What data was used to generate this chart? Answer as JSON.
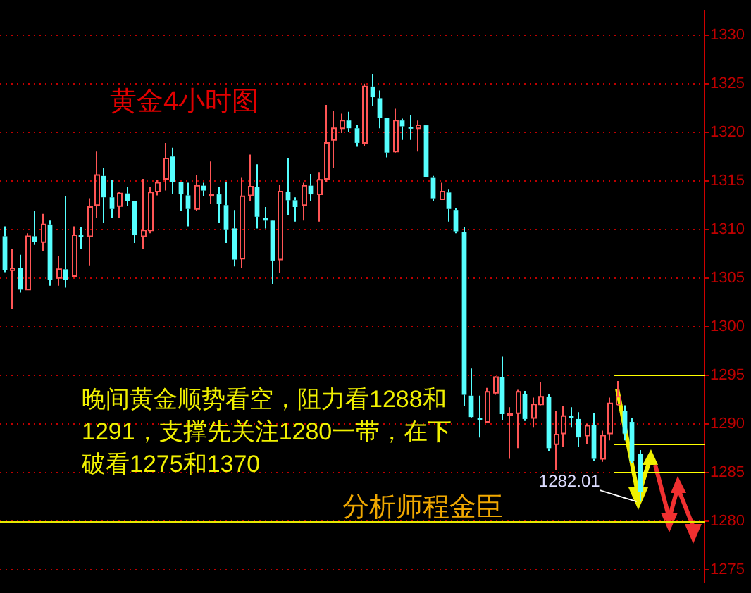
{
  "chart_data": {
    "type": "candlestick",
    "title": "黄金4小时图",
    "annotations": [
      "晚间黄金顺势看空，阻力看1288和1291，支撑先关注1280一带，在下破看1275和1370",
      "分析师程金臣",
      "1282.01"
    ],
    "categories": [
      null,
      null,
      null,
      null,
      null,
      null,
      null,
      null,
      null,
      null,
      null,
      null,
      null,
      null,
      null,
      null,
      null,
      null,
      null,
      null,
      null,
      null,
      null,
      null,
      null,
      null,
      null,
      null,
      null,
      null,
      null,
      null,
      null,
      null,
      null,
      null,
      null,
      null,
      null,
      null,
      null,
      null,
      null,
      null,
      null,
      null,
      null,
      null,
      null,
      null,
      null,
      null,
      null,
      null,
      null,
      null,
      null,
      null,
      null,
      null,
      null,
      null,
      null,
      null,
      null,
      null,
      null,
      null,
      null,
      null,
      null,
      null,
      null,
      null,
      null,
      null,
      null,
      null,
      null,
      null,
      null,
      null,
      null,
      null,
      null,
      null,
      null,
      null,
      null,
      null,
      null,
      null
    ],
    "ohlc": [
      [
        1309.3,
        1310.3,
        1305.6,
        1305.8
      ],
      [
        1305.8,
        1308.0,
        1301.8,
        1306.0
      ],
      [
        1306.0,
        1307.4,
        1303.5,
        1303.8
      ],
      [
        1303.8,
        1309.6,
        1303.8,
        1309.3
      ],
      [
        1309.3,
        1311.9,
        1308.4,
        1308.7
      ],
      [
        1308.7,
        1311.6,
        1307.8,
        1310.5
      ],
      [
        1310.5,
        1310.9,
        1304.2,
        1304.8
      ],
      [
        1305.0,
        1307.3,
        1304.2,
        1305.9
      ],
      [
        1305.9,
        1313.4,
        1304.0,
        1304.8
      ],
      [
        1305.2,
        1310.3,
        1305.2,
        1309.4
      ],
      [
        1309.4,
        1310.2,
        1308.0,
        1309.3
      ],
      [
        1309.3,
        1313.2,
        1306.3,
        1312.3
      ],
      [
        1312.5,
        1318.0,
        1311.2,
        1315.6
      ],
      [
        1315.5,
        1316.3,
        1310.7,
        1313.3
      ],
      [
        1313.3,
        1315.1,
        1311.2,
        1312.1
      ],
      [
        1312.4,
        1313.9,
        1311.2,
        1313.7
      ],
      [
        1313.7,
        1314.4,
        1312.4,
        1312.9
      ],
      [
        1312.9,
        1312.9,
        1308.6,
        1309.4
      ],
      [
        1309.3,
        1315.2,
        1308.0,
        1309.9
      ],
      [
        1309.9,
        1314.4,
        1309.6,
        1313.8
      ],
      [
        1313.9,
        1315.1,
        1313.5,
        1314.8
      ],
      [
        1315.2,
        1318.9,
        1314.0,
        1317.3
      ],
      [
        1317.5,
        1318.4,
        1313.6,
        1314.9
      ],
      [
        1314.9,
        1314.9,
        1311.9,
        1313.6
      ],
      [
        1313.5,
        1314.8,
        1310.3,
        1312.1
      ],
      [
        1312.1,
        1315.6,
        1311.9,
        1314.5
      ],
      [
        1314.5,
        1314.8,
        1313.4,
        1314.0
      ],
      [
        1313.5,
        1317.0,
        1312.6,
        1313.6
      ],
      [
        1313.6,
        1314.4,
        1310.7,
        1312.6
      ],
      [
        1312.5,
        1314.9,
        1308.6,
        1310.0
      ],
      [
        1310.1,
        1312.0,
        1306.2,
        1306.9
      ],
      [
        1307.0,
        1315.3,
        1306.0,
        1313.4
      ],
      [
        1313.5,
        1317.7,
        1312.9,
        1314.4
      ],
      [
        1314.4,
        1316.7,
        1310.1,
        1311.3
      ],
      [
        1311.2,
        1312.3,
        1310.1,
        1310.9
      ],
      [
        1310.9,
        1311.0,
        1304.4,
        1306.8
      ],
      [
        1306.9,
        1314.6,
        1305.5,
        1313.9
      ],
      [
        1313.9,
        1317.3,
        1311.5,
        1313.0
      ],
      [
        1313.0,
        1313.3,
        1310.8,
        1312.3
      ],
      [
        1312.5,
        1314.8,
        1310.9,
        1314.5
      ],
      [
        1314.5,
        1315.7,
        1312.9,
        1313.6
      ],
      [
        1313.6,
        1315.9,
        1310.8,
        1315.1
      ],
      [
        1315.2,
        1322.8,
        1314.9,
        1318.9
      ],
      [
        1319.2,
        1322.2,
        1316.3,
        1320.4
      ],
      [
        1320.4,
        1321.9,
        1319.9,
        1321.2
      ],
      [
        1321.2,
        1322.1,
        1320.0,
        1320.4
      ],
      [
        1320.4,
        1320.7,
        1318.5,
        1318.9
      ],
      [
        1318.9,
        1325.0,
        1318.6,
        1324.7
      ],
      [
        1324.7,
        1326.0,
        1322.7,
        1323.6
      ],
      [
        1323.5,
        1324.3,
        1320.4,
        1321.5
      ],
      [
        1321.5,
        1321.5,
        1317.4,
        1317.9
      ],
      [
        1318.0,
        1322.4,
        1317.9,
        1321.2
      ],
      [
        1321.2,
        1321.4,
        1319.2,
        1320.6
      ],
      [
        1320.5,
        1321.8,
        1319.2,
        1320.4
      ],
      [
        1320.4,
        1321.2,
        1318.0,
        1320.7
      ],
      [
        1320.7,
        1320.7,
        1315.4,
        1315.4
      ],
      [
        1315.3,
        1315.5,
        1312.9,
        1313.2
      ],
      [
        1313.1,
        1314.8,
        1313.1,
        1313.9
      ],
      [
        1313.8,
        1314.1,
        1310.8,
        1312.1
      ],
      [
        1312.0,
        1312.2,
        1309.6,
        1309.8
      ],
      [
        1309.7,
        1310.2,
        1291.8,
        1293.0
      ],
      [
        1292.9,
        1295.7,
        1290.6,
        1290.7
      ],
      [
        1290.6,
        1292.9,
        1288.6,
        1290.4
      ],
      [
        1290.2,
        1293.7,
        1290.2,
        1293.3
      ],
      [
        1293.2,
        1294.9,
        1293.0,
        1294.8
      ],
      [
        1294.8,
        1296.9,
        1290.4,
        1291.0
      ],
      [
        1290.9,
        1291.7,
        1286.4,
        1291.0
      ],
      [
        1291.1,
        1293.5,
        1287.5,
        1293.3
      ],
      [
        1293.1,
        1293.4,
        1290.3,
        1290.5
      ],
      [
        1290.6,
        1292.7,
        1289.6,
        1292.0
      ],
      [
        1292.0,
        1294.3,
        1291.9,
        1292.8
      ],
      [
        1292.8,
        1293.1,
        1287.2,
        1287.5
      ],
      [
        1287.9,
        1291.3,
        1285.2,
        1288.9
      ],
      [
        1289.0,
        1291.8,
        1287.6,
        1290.8
      ],
      [
        1290.8,
        1291.7,
        1289.6,
        1290.6
      ],
      [
        1290.5,
        1291.2,
        1287.6,
        1288.6
      ],
      [
        1288.8,
        1290.0,
        1287.9,
        1289.8
      ],
      [
        1289.9,
        1291.1,
        1286.2,
        1286.4
      ],
      [
        1286.4,
        1289.3,
        1286.1,
        1288.8
      ],
      [
        1289.0,
        1292.7,
        1288.3,
        1292.1
      ],
      [
        1292.0,
        1294.4,
        1291.9,
        1292.8
      ],
      [
        1291.3,
        1291.9,
        1288.3,
        1289.0
      ],
      [
        1290.2,
        1290.6,
        1286.0,
        1286.2
      ],
      [
        1286.9,
        1287.3,
        1282.01,
        1283.0
      ],
      null,
      null,
      null,
      null,
      null,
      null,
      null,
      null
    ],
    "colors": [
      "#55ffff",
      "#ff5555",
      "#55ffff",
      "#ff5555",
      "#55ffff",
      "#ff5555",
      "#55ffff",
      "#ff5555",
      "#55ffff",
      "#ff5555",
      "#55ffff",
      "#ff5555",
      "#ff5555",
      "#55ffff",
      "#55ffff",
      "#ff5555",
      "#55ffff",
      "#55ffff",
      "#ff5555",
      "#ff5555",
      "#ff5555",
      "#ff5555",
      "#55ffff",
      "#55ffff",
      "#55ffff",
      "#ff5555",
      "#55ffff",
      "#ff5555",
      "#55ffff",
      "#55ffff",
      "#55ffff",
      "#ff5555",
      "#ff5555",
      "#55ffff",
      "#55ffff",
      "#55ffff",
      "#ff5555",
      "#55ffff",
      "#55ffff",
      "#ff5555",
      "#55ffff",
      "#ff5555",
      "#ff5555",
      "#ff5555",
      "#ff5555",
      "#55ffff",
      "#55ffff",
      "#ff5555",
      "#55ffff",
      "#55ffff",
      "#55ffff",
      "#ff5555",
      "#55ffff",
      "#55ffff",
      "#ff5555",
      "#55ffff",
      "#55ffff",
      "#ff5555",
      "#55ffff",
      "#55ffff",
      "#55ffff",
      "#55ffff",
      "#55ffff",
      "#ff5555",
      "#ff5555",
      "#55ffff",
      "#ff5555",
      "#ff5555",
      "#55ffff",
      "#ff5555",
      "#ff5555",
      "#55ffff",
      "#ff5555",
      "#ff5555",
      "#55ffff",
      "#55ffff",
      "#ff5555",
      "#55ffff",
      "#ff5555",
      "#ff5555",
      "#ff5555",
      "#55ffff",
      "#55ffff",
      "#55ffff",
      null,
      null,
      null,
      null,
      null,
      null,
      null,
      null
    ],
    "ylim": [
      1273.7,
      1332.5
    ],
    "yticks": [
      1275,
      1280,
      1285,
      1290,
      1295,
      1300,
      1305,
      1310,
      1315,
      1320,
      1325,
      1330
    ],
    "grid": "y",
    "tick_labels": "y",
    "ref_lines": [
      {
        "axis": "y",
        "value": 1295,
        "color": "#ffff00"
      },
      {
        "axis": "y",
        "value": 1288,
        "color": "#ffff00"
      },
      {
        "axis": "y",
        "value": 1285,
        "color": "#ffff00"
      },
      {
        "axis": "y",
        "value": 1280,
        "color": "#e8e800"
      }
    ]
  }
}
